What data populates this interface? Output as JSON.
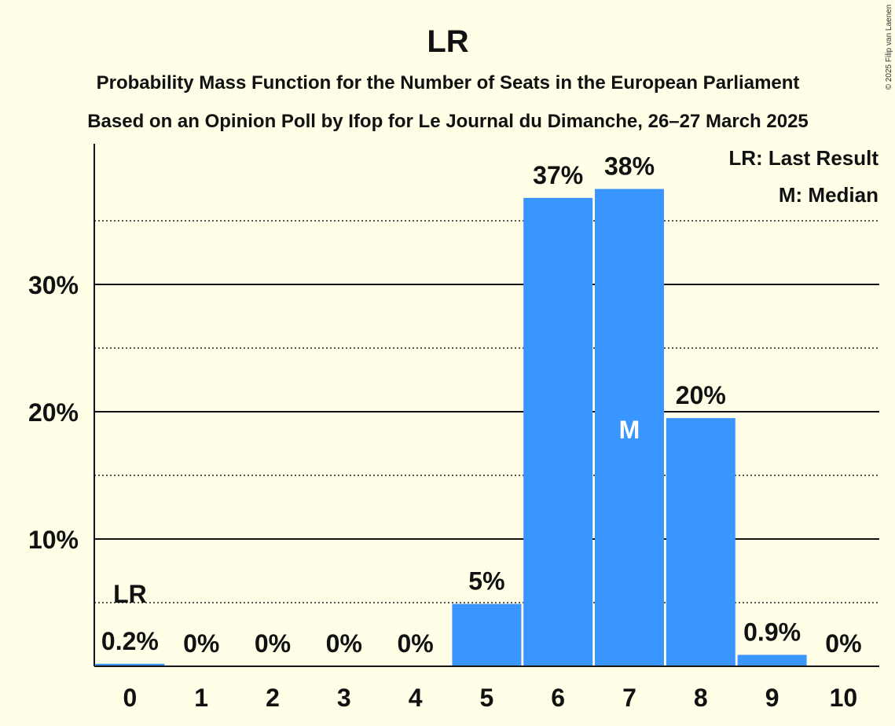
{
  "chart_data": {
    "type": "bar",
    "title": "LR",
    "subtitle_lines": [
      "Probability Mass Function for the Number of Seats in the European Parliament",
      "Based on an Opinion Poll by Ifop for Le Journal du Dimanche, 26–27 March 2025"
    ],
    "categories": [
      "0",
      "1",
      "2",
      "3",
      "4",
      "5",
      "6",
      "7",
      "8",
      "9",
      "10"
    ],
    "values": [
      0.2,
      0,
      0,
      0,
      0,
      4.9,
      36.8,
      37.5,
      19.5,
      0.9,
      0
    ],
    "data_labels": [
      "0.2%",
      "0%",
      "0%",
      "0%",
      "0%",
      "5%",
      "37%",
      "38%",
      "20%",
      "0.9%",
      "0%"
    ],
    "ylim": [
      0,
      41
    ],
    "yticks": [
      10,
      20,
      30
    ],
    "ytick_labels": [
      "10%",
      "20%",
      "30%"
    ],
    "minor_gridlines": [
      5,
      15,
      25,
      35
    ],
    "last_result_category": "0",
    "last_result_marker": "LR",
    "median_category": "7",
    "median_marker": "M",
    "legend": [
      "LR: Last Result",
      "M: Median"
    ],
    "legend_position": "top-right",
    "bar_color": "#3A96FF",
    "background_color": "#FFFEE6"
  },
  "copyright": "© 2025 Filip van Laenen"
}
